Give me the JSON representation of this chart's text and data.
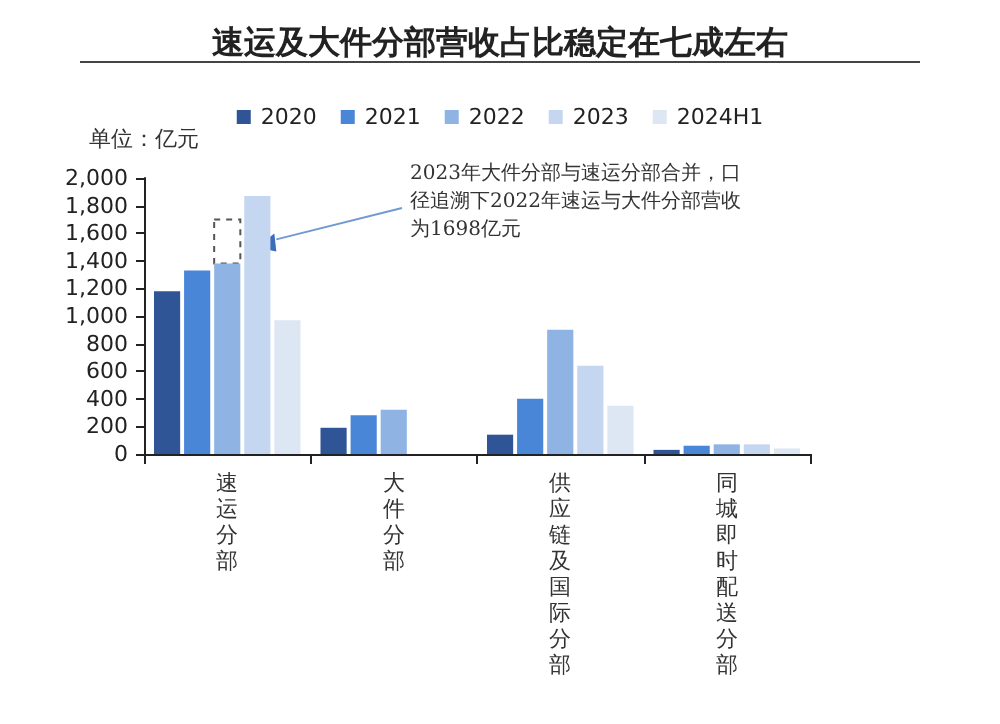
{
  "chart_data": {
    "type": "bar",
    "title": "速运及大件分部营收占比稳定在七成左右",
    "ylabel": "单位：亿元",
    "categories": [
      "速运分部",
      "大件分部",
      "供应链及国际分部",
      "同城即时配送分部"
    ],
    "series": [
      {
        "name": "2020",
        "color": "#2f5597",
        "values": [
          1180,
          190,
          140,
          30
        ]
      },
      {
        "name": "2021",
        "color": "#4a86d8",
        "values": [
          1330,
          280,
          400,
          60
        ]
      },
      {
        "name": "2022",
        "color": "#8fb4e3",
        "values": [
          1380,
          320,
          900,
          70
        ]
      },
      {
        "name": "2023",
        "color": "#c5d7f0",
        "values": [
          1870,
          null,
          640,
          70
        ]
      },
      {
        "name": "2024H1",
        "color": "#dde6f3",
        "values": [
          970,
          null,
          350,
          40
        ]
      },
      {
        "color": "#555555",
        "line_style": "dashed",
        "base": [
          1380,
          null,
          null,
          null
        ],
        "values": [
          320,
          null,
          null,
          null
        ]
      }
    ],
    "annotations": [
      "2023年大件分部与速运分部合并，口径追溯下2022年速运与大件分部营收为1698亿元"
    ],
    "ylim": [
      0,
      2000
    ],
    "yticks": [
      0,
      200,
      400,
      600,
      800,
      {
        "value": 1000,
        "label": "1,000"
      },
      {
        "value": 1200,
        "label": "1,200"
      },
      {
        "value": 1400,
        "label": "1,400"
      },
      {
        "value": 1600,
        "label": "1,600"
      },
      {
        "value": 1800,
        "label": "1,800"
      },
      {
        "value": 2000,
        "label": "2,000"
      }
    ],
    "grid": false,
    "legend": "top"
  }
}
